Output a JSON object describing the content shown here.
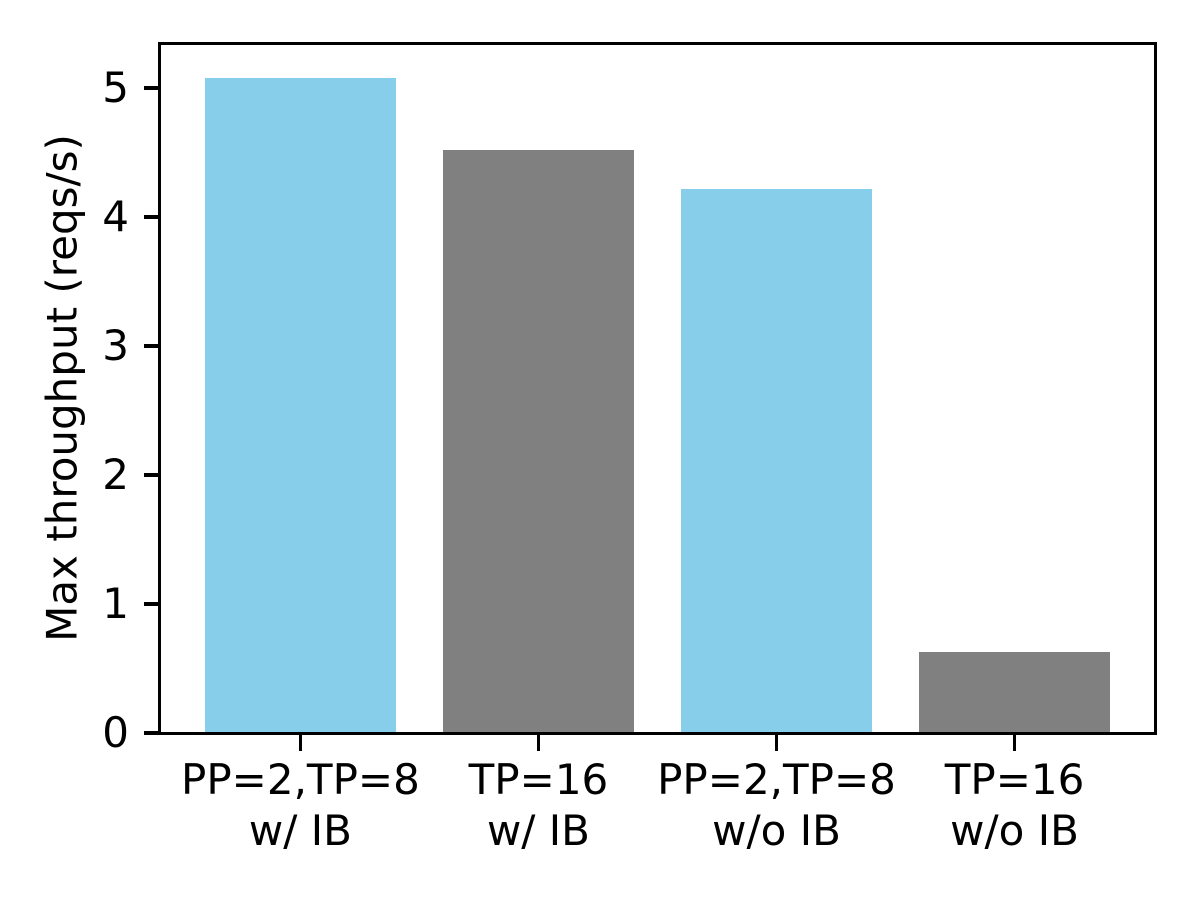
{
  "chart_data": {
    "type": "bar",
    "title": "",
    "xlabel": "",
    "ylabel": "Max throughput (reqs/s)",
    "categories": [
      "PP=2,TP=8\nw/ IB",
      "TP=16\nw/ IB",
      "PP=2,TP=8\nw/o IB",
      "TP=16\nw/o IB"
    ],
    "values": [
      5.08,
      4.52,
      4.22,
      0.63
    ],
    "bar_colors": [
      "#87CEEB",
      "#808080",
      "#87CEEB",
      "#808080"
    ],
    "yticks": [
      0,
      1,
      2,
      3,
      4,
      5
    ],
    "ylim": [
      0,
      5.34
    ],
    "xlim": [
      -0.59,
      3.59
    ],
    "bar_width_units": 0.8,
    "grid": false,
    "legend": null,
    "colors": {
      "axis": "#000000",
      "background": "#FFFFFF",
      "highlight_bar": "#87CEEB",
      "baseline_bar": "#808080"
    }
  }
}
